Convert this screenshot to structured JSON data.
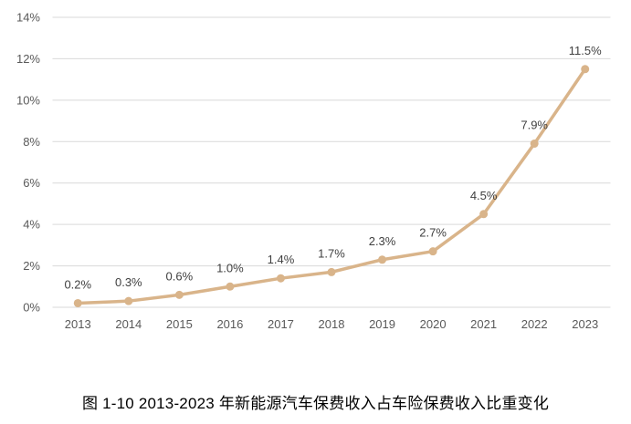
{
  "caption": "图 1-10 2013-2023 年新能源汽车保费收入占车险保费收入比重变化",
  "colors": {
    "background": "#FFFFFF",
    "line": "#D9B48A",
    "marker": "#D9B48A",
    "grid": "#D9D9D9",
    "tick_label": "#595959",
    "data_label": "#3F3F3F",
    "caption_text": "#000000"
  },
  "chart_data": {
    "type": "line",
    "title": "",
    "xlabel": "",
    "ylabel": "",
    "categories": [
      "2013",
      "2014",
      "2015",
      "2016",
      "2017",
      "2018",
      "2019",
      "2020",
      "2021",
      "2022",
      "2023"
    ],
    "values": [
      0.2,
      0.3,
      0.6,
      1.0,
      1.4,
      1.7,
      2.3,
      2.7,
      4.5,
      7.9,
      11.5
    ],
    "data_labels": [
      "0.2%",
      "0.3%",
      "0.6%",
      "1.0%",
      "1.4%",
      "1.7%",
      "2.3%",
      "2.7%",
      "4.5%",
      "7.9%",
      "11.5%"
    ],
    "ylim": [
      0,
      14
    ],
    "y_tick_step": 2,
    "y_tick_labels": [
      "0%",
      "2%",
      "4%",
      "6%",
      "8%",
      "10%",
      "12%",
      "14%"
    ],
    "grid": "horizontal-only",
    "legend": "none",
    "marker": "circle"
  }
}
